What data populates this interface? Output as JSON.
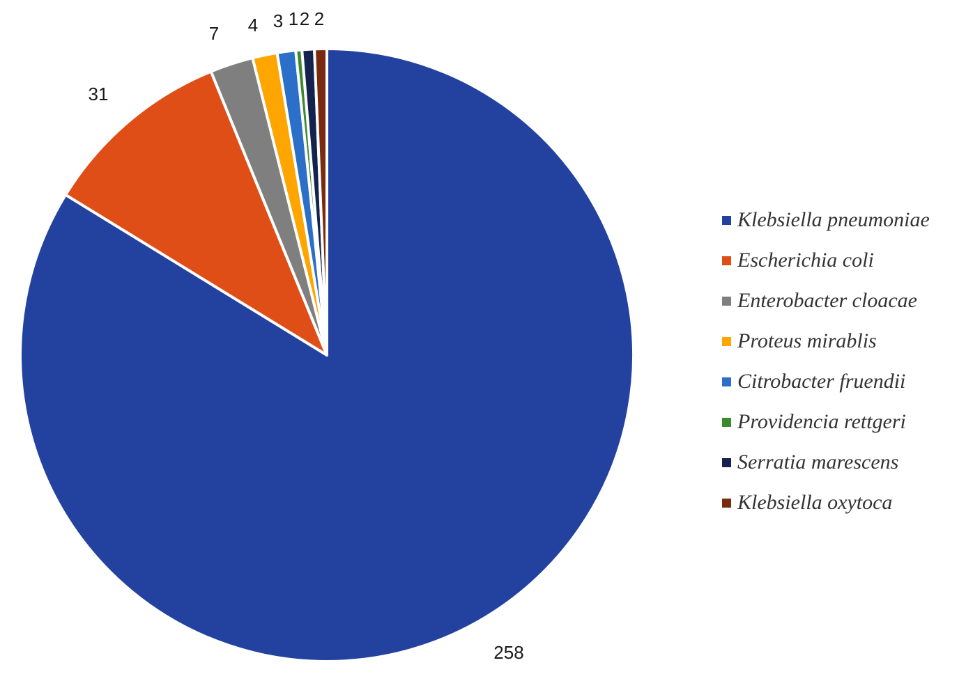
{
  "chart_data": {
    "type": "pie",
    "categories": [
      "Klebsiella pneumoniae",
      "Escherichia coli",
      "Enterobacter cloacae",
      "Proteus mirablis",
      "Citrobacter fruendii",
      "Providencia rettgeri",
      "Serratia marescens",
      "Klebsiella oxytoca"
    ],
    "values": [
      258,
      31,
      7,
      4,
      3,
      1,
      2,
      2
    ],
    "data_labels": [
      "258",
      "31",
      "7",
      "4",
      "3",
      "1",
      "2",
      "2"
    ],
    "colors": [
      "#2342A0",
      "#E04E17",
      "#7F7F7F",
      "#FFA500",
      "#2B6FC8",
      "#3C8A2E",
      "#14234E",
      "#7A2A0E"
    ],
    "legend_position": "right",
    "start_angle": "12 o'clock",
    "direction": "clockwise"
  }
}
